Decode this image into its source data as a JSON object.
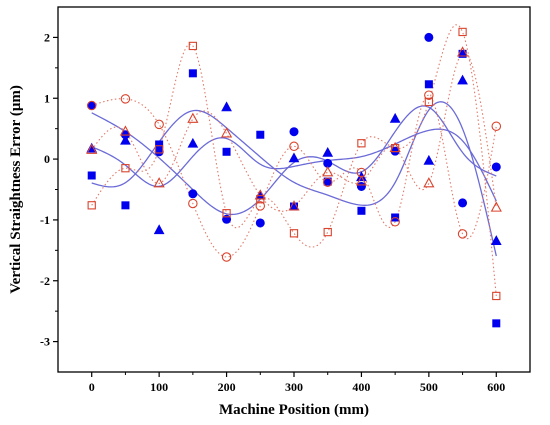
{
  "chart_data": {
    "type": "scatter",
    "xlabel": "Machine Position (mm)",
    "ylabel": "Vertical Straightness Error (μm)",
    "xlim": [
      -50,
      650
    ],
    "ylim": [
      -3.5,
      2.5
    ],
    "xticks": [
      0,
      100,
      200,
      300,
      400,
      500,
      600
    ],
    "yticks": [
      -3,
      -2,
      -1,
      0,
      1,
      2
    ],
    "grid": false,
    "legend": "none",
    "x": [
      0,
      50,
      100,
      150,
      200,
      250,
      300,
      350,
      400,
      450,
      500,
      550,
      600
    ],
    "series": [
      {
        "marker": "filled-circle",
        "color": "#0000ee",
        "fit_line": "solid",
        "values": [
          0.88,
          0.4,
          0.12,
          -0.57,
          -0.99,
          -1.05,
          0.45,
          -0.07,
          -0.45,
          0.13,
          2.0,
          -0.72,
          -0.13
        ]
      },
      {
        "marker": "filled-square",
        "color": "#0000ee",
        "fit_line": "solid",
        "values": [
          -0.27,
          -0.76,
          0.24,
          1.41,
          0.12,
          0.4,
          -0.78,
          -0.37,
          -0.85,
          -0.96,
          1.23,
          1.73,
          -2.7
        ]
      },
      {
        "marker": "filled-triangle",
        "color": "#0000ee",
        "fit_line": "solid",
        "values": [
          0.17,
          0.3,
          -1.17,
          0.25,
          0.85,
          -0.6,
          0.01,
          0.1,
          -0.3,
          0.66,
          -0.03,
          1.29,
          -1.35
        ]
      },
      {
        "marker": "open-circle",
        "color": "#d9432c",
        "fit_line": "dotted",
        "values": [
          0.88,
          0.99,
          0.57,
          -0.73,
          -1.61,
          -0.77,
          0.21,
          -0.38,
          -0.22,
          -1.03,
          1.05,
          -1.23,
          0.54
        ]
      },
      {
        "marker": "open-square",
        "color": "#d9432c",
        "fit_line": "dotted",
        "values": [
          -0.76,
          -0.15,
          0.16,
          1.86,
          -0.89,
          -0.66,
          -1.22,
          -1.2,
          0.26,
          0.18,
          0.94,
          2.09,
          -2.25
        ]
      },
      {
        "marker": "open-triangle",
        "color": "#d9432c",
        "fit_line": "dotted",
        "values": [
          0.15,
          0.45,
          -0.4,
          0.66,
          0.42,
          -0.6,
          -0.78,
          -0.22,
          -0.37,
          0.18,
          -0.4,
          1.75,
          -0.8
        ]
      }
    ]
  }
}
